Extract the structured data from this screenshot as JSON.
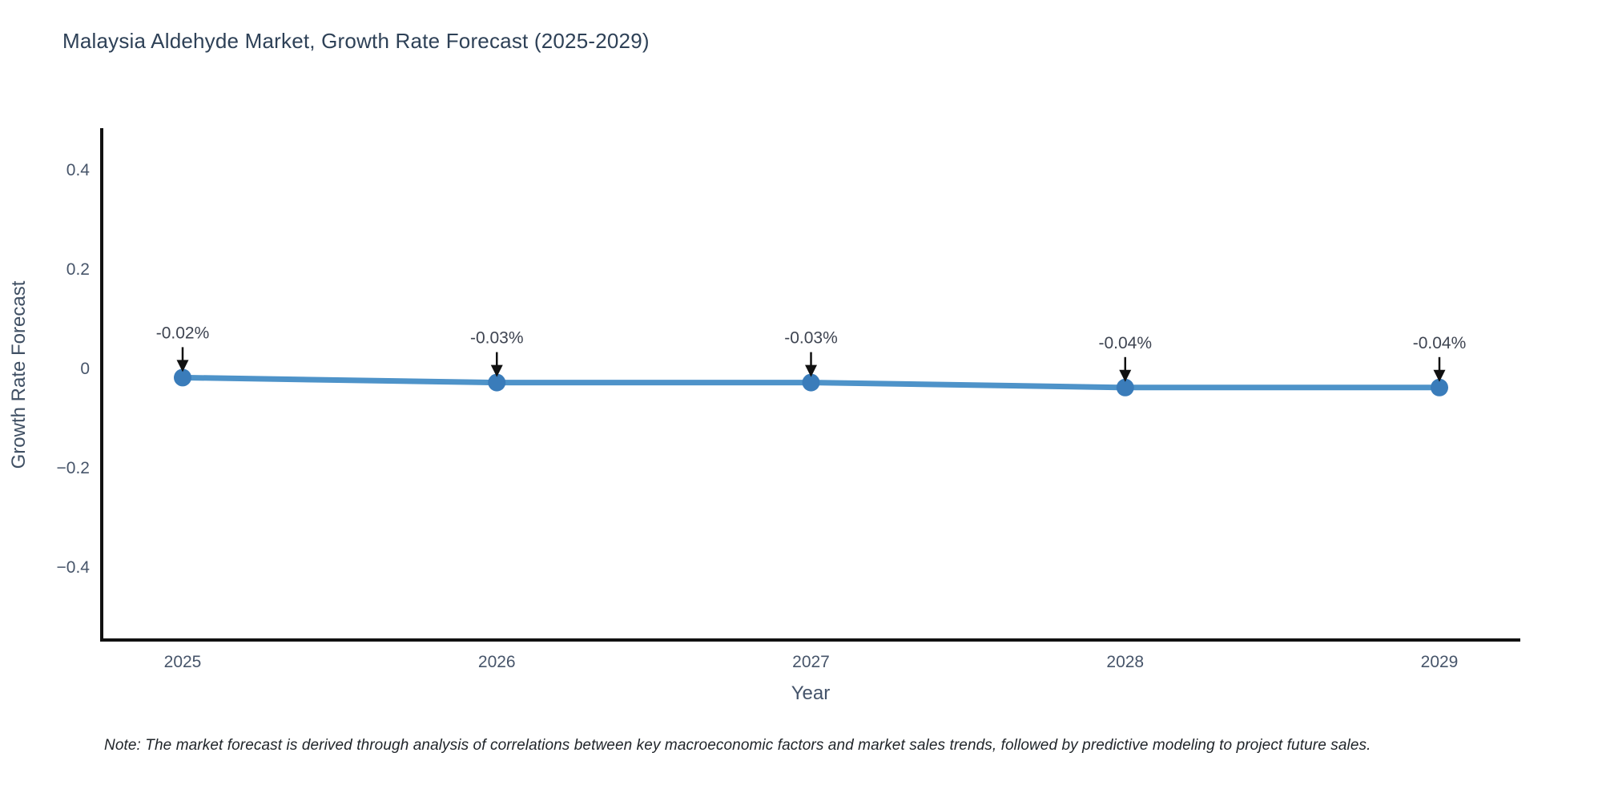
{
  "page": {
    "background": "#ffffff"
  },
  "chart_data": {
    "type": "line",
    "title": "Malaysia Aldehyde Market, Growth Rate Forecast (2025-2029)",
    "xlabel": "Year",
    "ylabel": "Growth Rate Forecast",
    "x": [
      2025,
      2026,
      2027,
      2028,
      2029
    ],
    "series": [
      {
        "name": "Growth Rate Forecast",
        "values": [
          -0.02,
          -0.03,
          -0.03,
          -0.04,
          -0.04
        ]
      }
    ],
    "point_labels": [
      "-0.02%",
      "-0.03%",
      "-0.03%",
      "-0.04%",
      "-0.04%"
    ],
    "yticks": [
      {
        "value": 0.4,
        "label": "0.4"
      },
      {
        "value": 0.2,
        "label": "0.2"
      },
      {
        "value": 0,
        "label": "0"
      },
      {
        "value": -0.2,
        "label": "−0.2"
      },
      {
        "value": -0.4,
        "label": "−0.4"
      }
    ],
    "ylim": [
      -0.55,
      0.48
    ],
    "grid": false,
    "legend": "none",
    "line_color": "#4e93c9",
    "marker_color": "#3a7cba",
    "axis_color": "#111111",
    "arrow_color": "#111111",
    "note": "Note: The market forecast is derived through analysis of correlations between key macroeconomic factors and market sales trends, followed by predictive modeling to project future sales."
  }
}
